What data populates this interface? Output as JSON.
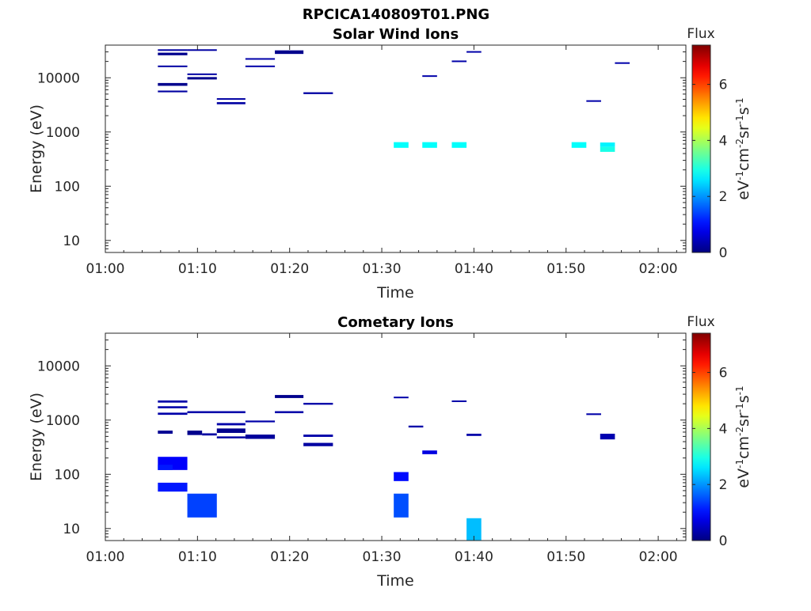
{
  "figure_title": "RPCICA140809T01.PNG",
  "chart_data": [
    {
      "type": "heatmap",
      "title": "Solar Wind Ions",
      "xlabel": "Time",
      "ylabel": "Energy (eV)",
      "x_ticks": [
        "01:00",
        "01:10",
        "01:20",
        "01:30",
        "01:40",
        "01:50",
        "02:00"
      ],
      "xlim_minutes": [
        0,
        63
      ],
      "y_scale": "log",
      "ylim": [
        6,
        40000
      ],
      "y_ticks": [
        10,
        100,
        1000,
        10000
      ],
      "y_tick_labels": [
        "10",
        "100",
        "1000",
        "10000"
      ],
      "colorbar": {
        "title": "Flux",
        "unit_label": "eV-1cm-2sr-1s-1",
        "min": 0,
        "max": 7.4,
        "ticks": [
          0,
          2,
          4,
          6
        ],
        "tick_labels": [
          "0",
          "2",
          "4",
          "6"
        ]
      },
      "cells": [
        {
          "t0": 5.7,
          "t1": 8.9,
          "e0": 31500,
          "e1": 33500,
          "flux": 0.25
        },
        {
          "t0": 5.7,
          "t1": 8.9,
          "e0": 26000,
          "e1": 29000,
          "flux": 0.1
        },
        {
          "t0": 5.7,
          "t1": 8.9,
          "e0": 15800,
          "e1": 16800,
          "flux": 0.25
        },
        {
          "t0": 5.7,
          "t1": 8.9,
          "e0": 7100,
          "e1": 8000,
          "flux": 0.1
        },
        {
          "t0": 5.7,
          "t1": 8.9,
          "e0": 5400,
          "e1": 5800,
          "flux": 0.25
        },
        {
          "t0": 8.9,
          "t1": 12.1,
          "e0": 31800,
          "e1": 33500,
          "flux": 0.25
        },
        {
          "t0": 8.9,
          "t1": 12.1,
          "e0": 11400,
          "e1": 12000,
          "flux": 0.25
        },
        {
          "t0": 8.9,
          "t1": 12.1,
          "e0": 9300,
          "e1": 10300,
          "flux": 0.1
        },
        {
          "t0": 12.1,
          "t1": 15.2,
          "e0": 3950,
          "e1": 4200,
          "flux": 0.25
        },
        {
          "t0": 12.1,
          "t1": 15.2,
          "e0": 3250,
          "e1": 3550,
          "flux": 0.25
        },
        {
          "t0": 15.2,
          "t1": 18.4,
          "e0": 21600,
          "e1": 23000,
          "flux": 0.3
        },
        {
          "t0": 15.2,
          "t1": 18.4,
          "e0": 15800,
          "e1": 16800,
          "flux": 0.3
        },
        {
          "t0": 18.4,
          "t1": 21.5,
          "e0": 27500,
          "e1": 32000,
          "flux": 0.1
        },
        {
          "t0": 21.5,
          "t1": 24.7,
          "e0": 5000,
          "e1": 5400,
          "flux": 0.25
        },
        {
          "t0": 31.3,
          "t1": 32.9,
          "e0": 510,
          "e1": 650,
          "flux": 2.8
        },
        {
          "t0": 34.4,
          "t1": 36.0,
          "e0": 510,
          "e1": 650,
          "flux": 2.8
        },
        {
          "t0": 34.4,
          "t1": 36.0,
          "e0": 10500,
          "e1": 11100,
          "flux": 0.3
        },
        {
          "t0": 37.6,
          "t1": 39.2,
          "e0": 510,
          "e1": 650,
          "flux": 2.8
        },
        {
          "t0": 37.6,
          "t1": 39.2,
          "e0": 19800,
          "e1": 20800,
          "flux": 0.3
        },
        {
          "t0": 39.2,
          "t1": 40.8,
          "e0": 29500,
          "e1": 31000,
          "flux": 0.3
        },
        {
          "t0": 50.6,
          "t1": 52.2,
          "e0": 510,
          "e1": 650,
          "flux": 2.8
        },
        {
          "t0": 52.2,
          "t1": 53.8,
          "e0": 3600,
          "e1": 3850,
          "flux": 0.3
        },
        {
          "t0": 53.7,
          "t1": 55.3,
          "e0": 530,
          "e1": 640,
          "flux": 2.7
        },
        {
          "t0": 53.7,
          "t1": 55.3,
          "e0": 430,
          "e1": 530,
          "flux": 2.95
        },
        {
          "t0": 55.3,
          "t1": 56.9,
          "e0": 18300,
          "e1": 19300,
          "flux": 0.3
        }
      ]
    },
    {
      "type": "heatmap",
      "title": "Cometary Ions",
      "xlabel": "Time",
      "ylabel": "Energy (eV)",
      "x_ticks": [
        "01:00",
        "01:10",
        "01:20",
        "01:30",
        "01:40",
        "01:50",
        "02:00"
      ],
      "xlim_minutes": [
        0,
        63
      ],
      "y_scale": "log",
      "ylim": [
        6,
        40000
      ],
      "y_ticks": [
        10,
        100,
        1000,
        10000
      ],
      "y_tick_labels": [
        "10",
        "100",
        "1000",
        "10000"
      ],
      "colorbar": {
        "title": "Flux",
        "unit_label": "eV-1cm-2sr-1s-1",
        "min": 0,
        "max": 7.4,
        "ticks": [
          0,
          2,
          4,
          6
        ],
        "tick_labels": [
          "0",
          "2",
          "4",
          "6"
        ]
      },
      "cells": [
        {
          "t0": 5.7,
          "t1": 8.9,
          "e0": 2100,
          "e1": 2300,
          "flux": 0.3
        },
        {
          "t0": 5.7,
          "t1": 8.9,
          "e0": 1650,
          "e1": 1800,
          "flux": 0.3
        },
        {
          "t0": 5.7,
          "t1": 8.9,
          "e0": 1250,
          "e1": 1370,
          "flux": 0.3
        },
        {
          "t0": 5.7,
          "t1": 7.3,
          "e0": 560,
          "e1": 640,
          "flux": 0.15
        },
        {
          "t0": 5.7,
          "t1": 8.9,
          "e0": 120,
          "e1": 210,
          "flux": 0.9
        },
        {
          "t0": 5.7,
          "t1": 7.3,
          "e0": 120,
          "e1": 150,
          "flux": 1.1
        },
        {
          "t0": 5.7,
          "t1": 8.9,
          "e0": 48,
          "e1": 70,
          "flux": 1.1
        },
        {
          "t0": 8.9,
          "t1": 15.2,
          "e0": 1340,
          "e1": 1460,
          "flux": 0.3
        },
        {
          "t0": 8.9,
          "t1": 10.5,
          "e0": 530,
          "e1": 640,
          "flux": 0.1
        },
        {
          "t0": 10.5,
          "t1": 12.1,
          "e0": 520,
          "e1": 570,
          "flux": 0.25
        },
        {
          "t0": 8.9,
          "t1": 12.1,
          "e0": 16,
          "e1": 44,
          "flux": 1.4
        },
        {
          "t0": 12.1,
          "t1": 15.2,
          "e0": 800,
          "e1": 880,
          "flux": 0.3
        },
        {
          "t0": 12.1,
          "t1": 15.2,
          "e0": 580,
          "e1": 700,
          "flux": 0.1
        },
        {
          "t0": 12.1,
          "t1": 15.2,
          "e0": 460,
          "e1": 500,
          "flux": 0.25
        },
        {
          "t0": 15.2,
          "t1": 18.4,
          "e0": 910,
          "e1": 980,
          "flux": 0.3
        },
        {
          "t0": 15.2,
          "t1": 18.4,
          "e0": 450,
          "e1": 540,
          "flux": 0.2
        },
        {
          "t0": 18.4,
          "t1": 21.5,
          "e0": 2550,
          "e1": 2900,
          "flux": 0.1
        },
        {
          "t0": 18.4,
          "t1": 21.5,
          "e0": 1340,
          "e1": 1460,
          "flux": 0.3
        },
        {
          "t0": 21.5,
          "t1": 24.7,
          "e0": 1920,
          "e1": 2080,
          "flux": 0.3
        },
        {
          "t0": 21.5,
          "t1": 24.7,
          "e0": 490,
          "e1": 540,
          "flux": 0.3
        },
        {
          "t0": 21.5,
          "t1": 24.7,
          "e0": 330,
          "e1": 380,
          "flux": 0.25
        },
        {
          "t0": 31.3,
          "t1": 32.9,
          "e0": 2550,
          "e1": 2700,
          "flux": 0.3
        },
        {
          "t0": 31.3,
          "t1": 32.9,
          "e0": 75,
          "e1": 110,
          "flux": 1.0
        },
        {
          "t0": 31.3,
          "t1": 32.9,
          "e0": 16,
          "e1": 44,
          "flux": 1.5
        },
        {
          "t0": 32.9,
          "t1": 34.5,
          "e0": 730,
          "e1": 790,
          "flux": 0.3
        },
        {
          "t0": 34.4,
          "t1": 36.0,
          "e0": 235,
          "e1": 275,
          "flux": 0.7
        },
        {
          "t0": 37.6,
          "t1": 39.2,
          "e0": 2150,
          "e1": 2300,
          "flux": 0.3
        },
        {
          "t0": 39.2,
          "t1": 40.8,
          "e0": 510,
          "e1": 560,
          "flux": 0.3
        },
        {
          "t0": 39.2,
          "t1": 40.8,
          "e0": 6,
          "e1": 15.5,
          "flux": 2.3
        },
        {
          "t0": 52.2,
          "t1": 53.8,
          "e0": 1240,
          "e1": 1330,
          "flux": 0.3
        },
        {
          "t0": 53.7,
          "t1": 55.3,
          "e0": 440,
          "e1": 560,
          "flux": 0.35
        }
      ]
    }
  ]
}
